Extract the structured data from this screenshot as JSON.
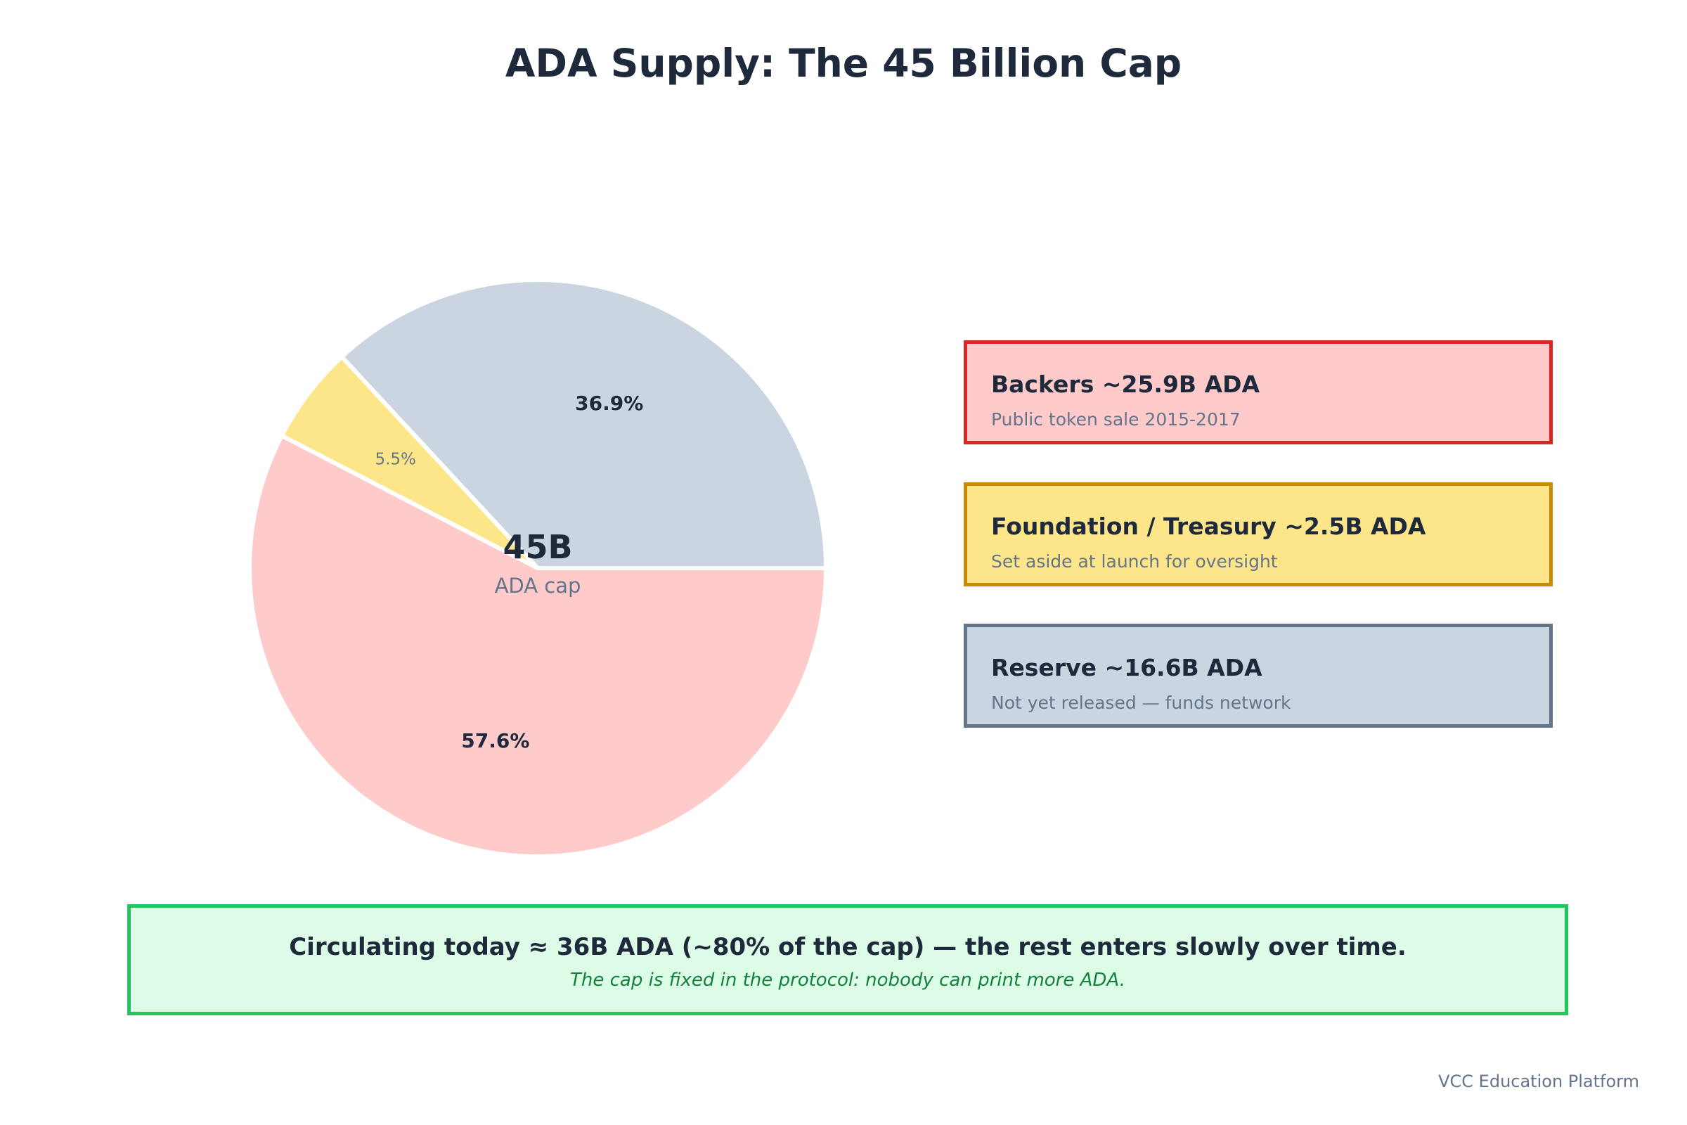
{
  "title": "ADA Supply: The 45 Billion Cap",
  "chart_data": {
    "type": "pie",
    "title": "ADA Supply: The 45 Billion Cap",
    "center_value": "45B",
    "center_label": "ADA cap",
    "slices": [
      {
        "name": "Backers",
        "value": 57.6,
        "label": "57.6%",
        "color": "#fecaca",
        "edge": "#dc2626",
        "label_color": "#1e293b",
        "label_bold": true
      },
      {
        "name": "Foundation / Treasury",
        "value": 5.5,
        "label": "5.5%",
        "color": "#fde68a",
        "edge": "#ca8a04",
        "label_color": "#64748b",
        "label_bold": false
      },
      {
        "name": "Reserve",
        "value": 36.9,
        "label": "36.9%",
        "color": "#cbd5e1",
        "edge": "#64748b",
        "label_color": "#1e293b",
        "label_bold": true
      }
    ]
  },
  "legend": [
    {
      "title": "Backers ~25.9B ADA",
      "subtitle": "Public token sale 2015-2017",
      "fill": "#fecaca",
      "border": "#dc2626"
    },
    {
      "title": "Foundation / Treasury ~2.5B ADA",
      "subtitle": "Set aside at launch for oversight",
      "fill": "#fde68a",
      "border": "#ca8a04"
    },
    {
      "title": "Reserve ~16.6B ADA",
      "subtitle": "Not yet released — funds network",
      "fill": "#cbd5e1",
      "border": "#64748b"
    }
  ],
  "footer": {
    "main": "Circulating today ≈ 36B ADA (~80% of the cap) — the rest enters slowly over time.",
    "sub": "The cap is fixed in the protocol: nobody can print more ADA."
  },
  "credit": "VCC Education Platform"
}
